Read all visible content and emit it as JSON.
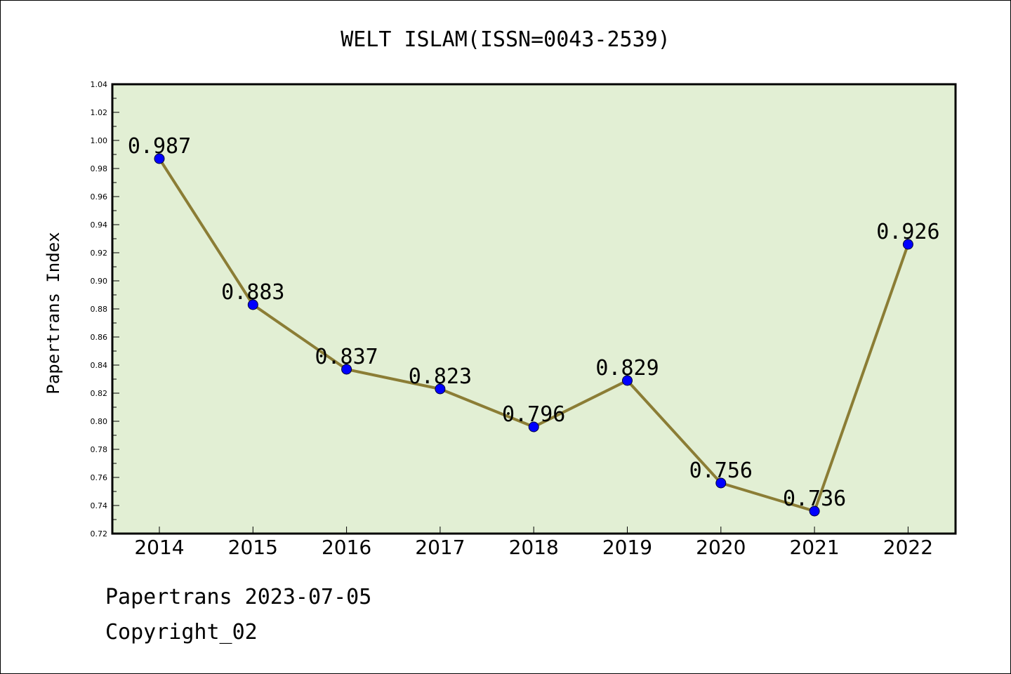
{
  "chart_data": {
    "type": "line",
    "title": "WELT ISLAM(ISSN=0043-2539)",
    "xlabel": "",
    "ylabel": "Papertrans Index",
    "categories": [
      "2014",
      "2015",
      "2016",
      "2017",
      "2018",
      "2019",
      "2020",
      "2021",
      "2022"
    ],
    "values": [
      0.987,
      0.883,
      0.837,
      0.823,
      0.796,
      0.829,
      0.756,
      0.736,
      0.926
    ],
    "data_labels": [
      "0.987",
      "0.883",
      "0.837",
      "0.823",
      "0.796",
      "0.829",
      "0.756",
      "0.736",
      "0.926"
    ],
    "ylim": [
      0.72,
      1.04
    ],
    "yticks": [
      "0.72",
      "0.74",
      "0.76",
      "0.78",
      "0.80",
      "0.82",
      "0.84",
      "0.86",
      "0.88",
      "0.90",
      "0.92",
      "0.94",
      "0.96",
      "0.98",
      "1.00",
      "1.02",
      "1.04"
    ],
    "grid": false,
    "colors": {
      "plot_background": "#e2efd4",
      "line": "#8b7d35",
      "marker": "#0000ff"
    }
  },
  "footer": {
    "line1": "Papertrans 2023-07-05",
    "line2": "Copyright_02"
  }
}
